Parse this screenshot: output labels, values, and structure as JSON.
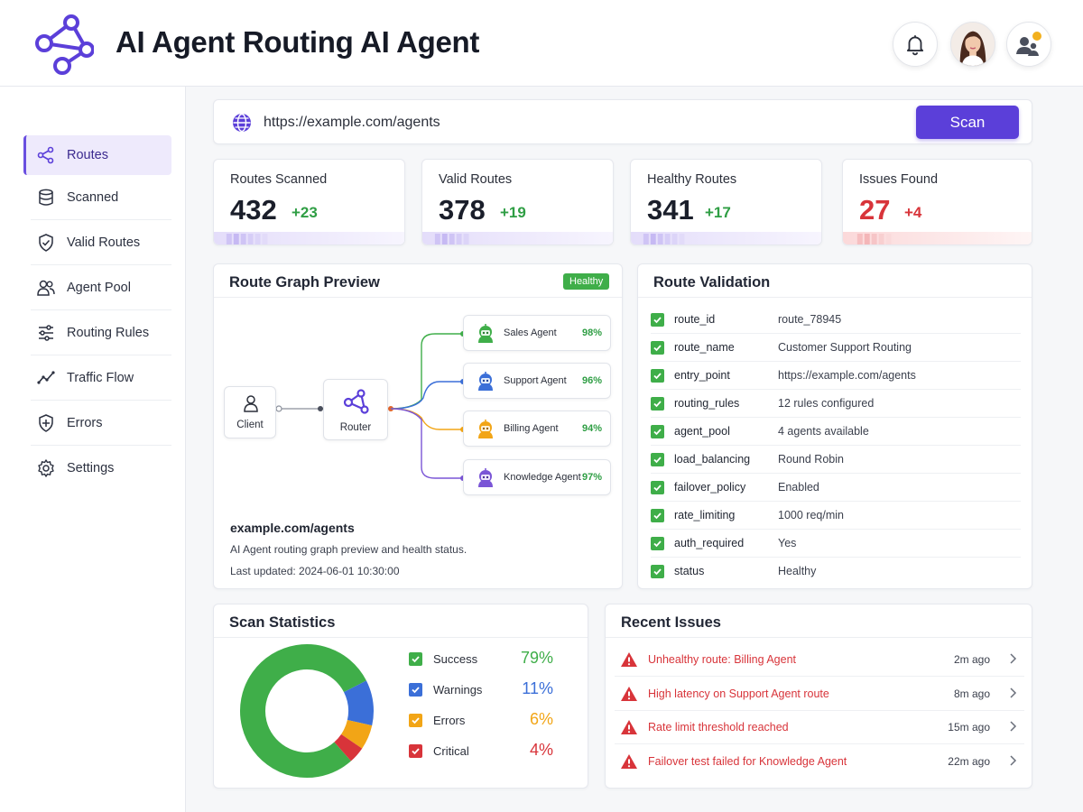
{
  "app": {
    "title": "AI Agent Routing AI Agent"
  },
  "header": {
    "icons": [
      "network-logo-icon",
      "bell-icon",
      "user-avatar",
      "settings-user-icon"
    ]
  },
  "sidebar": {
    "items": [
      {
        "label": "Routes",
        "icon": "route-icon",
        "active": true
      },
      {
        "label": "Scanned",
        "icon": "database-icon"
      },
      {
        "label": "Valid Routes",
        "icon": "shield-check-icon"
      },
      {
        "label": "Agent Pool",
        "icon": "users-icon"
      },
      {
        "label": "Routing Rules",
        "icon": "sliders-icon"
      },
      {
        "label": "Traffic Flow",
        "icon": "trend-icon"
      },
      {
        "label": "Errors",
        "icon": "shield-alert-icon"
      },
      {
        "label": "Settings",
        "icon": "gear-icon"
      }
    ]
  },
  "search": {
    "url": "https://example.com/agents",
    "scan_label": "Scan"
  },
  "stats": [
    {
      "label": "Routes Scanned",
      "value": "432",
      "delta": "+23",
      "tone": "purple"
    },
    {
      "label": "Valid Routes",
      "value": "378",
      "delta": "+19",
      "tone": "purple"
    },
    {
      "label": "Healthy Routes",
      "value": "341",
      "delta": "+17",
      "tone": "purple"
    },
    {
      "label": "Issues Found",
      "value": "27",
      "delta": "+4",
      "tone": "red"
    }
  ],
  "graph": {
    "title": "Route Graph Preview",
    "badge": "Healthy",
    "client_label": "Client",
    "router_label": "Router",
    "agents": [
      {
        "name": "Sales Agent",
        "pct": "98%",
        "color": "#3fae49"
      },
      {
        "name": "Support Agent",
        "pct": "96%",
        "color": "#3b6fd8"
      },
      {
        "name": "Billing Agent",
        "pct": "94%",
        "color": "#f2a516"
      },
      {
        "name": "Knowledge Agent",
        "pct": "97%",
        "color": "#7a55d6"
      }
    ],
    "url": "example.com/agents",
    "description": "AI Agent routing graph preview and health status.",
    "updated": "Last updated: 2024-06-01 10:30:00"
  },
  "validation": {
    "title": "Route Validation",
    "rows": [
      {
        "key": "route_id",
        "value": "route_78945"
      },
      {
        "key": "route_name",
        "value": "Customer Support Routing"
      },
      {
        "key": "entry_point",
        "value": "https://example.com/agents"
      },
      {
        "key": "routing_rules",
        "value": "12 rules configured"
      },
      {
        "key": "agent_pool",
        "value": "4 agents available"
      },
      {
        "key": "load_balancing",
        "value": "Round Robin"
      },
      {
        "key": "failover_policy",
        "value": "Enabled"
      },
      {
        "key": "rate_limiting",
        "value": "1000 req/min"
      },
      {
        "key": "auth_required",
        "value": "Yes"
      },
      {
        "key": "status",
        "value": "Healthy"
      }
    ]
  },
  "scan_stats": {
    "title": "Scan Statistics",
    "items": [
      {
        "label": "Success",
        "pct": "79%",
        "value": 79,
        "color": "#3fae49"
      },
      {
        "label": "Warnings",
        "pct": "11%",
        "value": 11,
        "color": "#3b6fd8"
      },
      {
        "label": "Errors",
        "pct": "6%",
        "value": 6,
        "color": "#f2a516"
      },
      {
        "label": "Critical",
        "pct": "4%",
        "value": 4,
        "color": "#d8343a"
      }
    ]
  },
  "issues": {
    "title": "Recent Issues",
    "items": [
      {
        "text": "Unhealthy route: Billing Agent",
        "time": "2m ago"
      },
      {
        "text": "High latency on Support Agent route",
        "time": "8m ago"
      },
      {
        "text": "Rate limit threshold reached",
        "time": "15m ago"
      },
      {
        "text": "Failover test failed for Knowledge Agent",
        "time": "22m ago"
      }
    ]
  }
}
